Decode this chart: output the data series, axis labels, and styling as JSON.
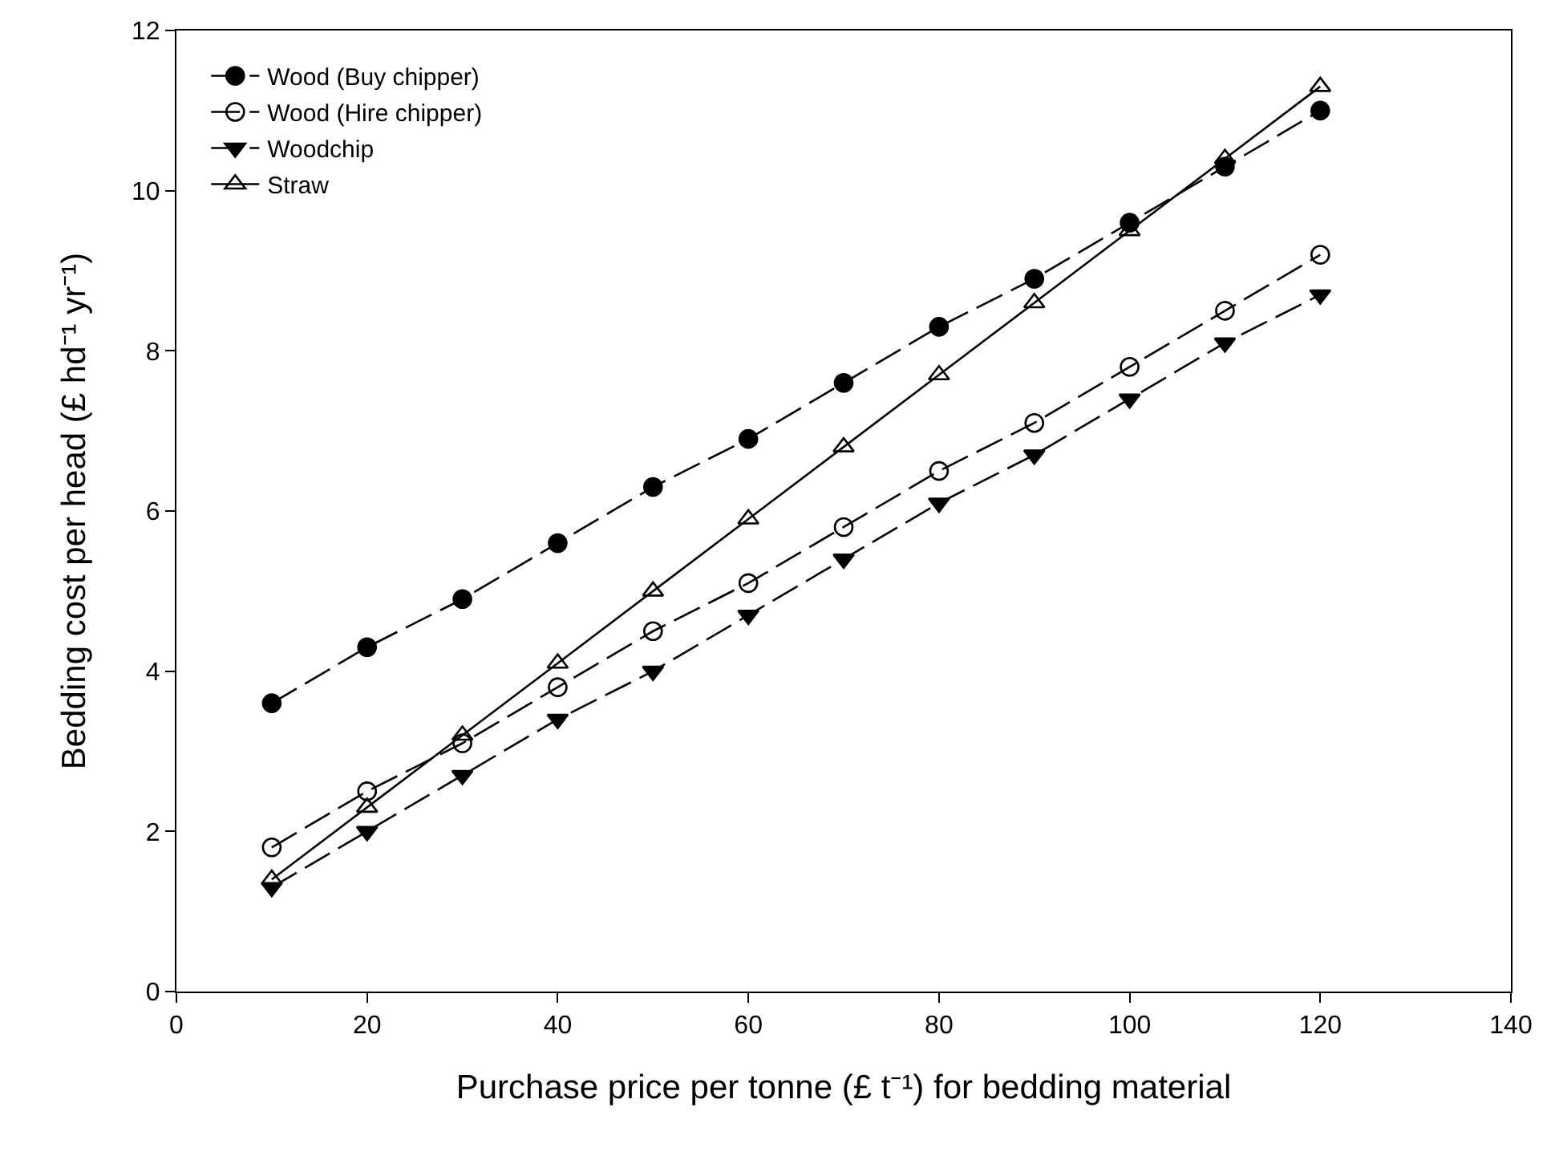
{
  "chart_data": {
    "type": "line",
    "xlabel": "Purchase price per tonne (£ t⁻¹) for bedding material",
    "ylabel": "Bedding cost per head (£ hd⁻¹ yr⁻¹)",
    "x": [
      10,
      20,
      30,
      40,
      50,
      60,
      70,
      80,
      90,
      100,
      110,
      120
    ],
    "series": [
      {
        "name": "Wood (Buy chipper)",
        "color": "#000000",
        "marker": "circle",
        "line_style": "dashed",
        "values": [
          3.6,
          4.3,
          4.9,
          5.6,
          6.3,
          6.9,
          7.6,
          8.3,
          8.9,
          9.6,
          10.3,
          11.0
        ]
      },
      {
        "name": "Wood (Hire chipper)",
        "color": "#000000",
        "marker": "circle-open",
        "line_style": "dashed",
        "values": [
          1.8,
          2.5,
          3.1,
          3.8,
          4.5,
          5.1,
          5.8,
          6.5,
          7.1,
          7.8,
          8.5,
          9.2
        ]
      },
      {
        "name": "Woodchip",
        "color": "#000000",
        "marker": "triangle-down",
        "line_style": "dashed",
        "values": [
          1.3,
          2.0,
          2.7,
          3.4,
          4.0,
          4.7,
          5.4,
          6.1,
          6.7,
          7.4,
          8.1,
          8.7
        ]
      },
      {
        "name": "Straw",
        "color": "#000000",
        "marker": "triangle-open",
        "line_style": "solid",
        "values": [
          1.4,
          2.3,
          3.2,
          4.1,
          5.0,
          5.9,
          6.8,
          7.7,
          8.6,
          9.5,
          10.4,
          11.3
        ]
      }
    ],
    "xlim": [
      0,
      140
    ],
    "xticks": [
      0,
      20,
      40,
      60,
      80,
      100,
      120,
      140
    ],
    "ylim": [
      0,
      12
    ],
    "yticks": [
      0,
      2,
      4,
      6,
      8,
      10,
      12
    ],
    "grid": false,
    "legend": "top left"
  }
}
